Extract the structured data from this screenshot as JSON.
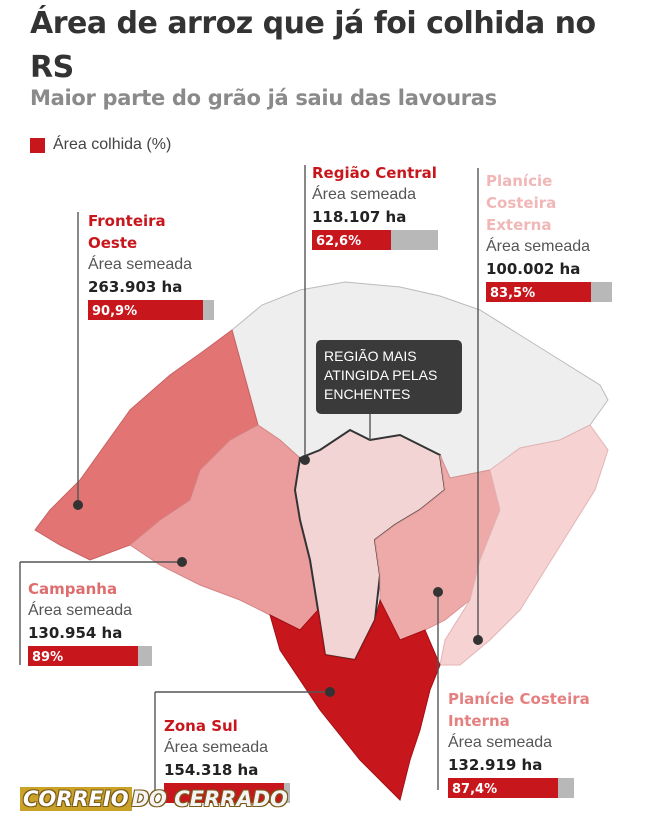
{
  "title": "Área de arroz que já foi colhida no RS",
  "subtitle": "Maior parte do grão já saiu das lavouras",
  "legend_label": "Área colhida (%)",
  "map_note": "REGIÃO MAIS ATINGIDA PELAS ENCHENTES",
  "regions": [
    {
      "name": "Fronteira Oeste",
      "label": "Área semeada",
      "area": "263.903 ha",
      "pct_text": "90,9%",
      "pct": 90.9,
      "color": "#c8161d"
    },
    {
      "name": "Região Central",
      "label": "Área semeada",
      "area": "118.107 ha",
      "pct_text": "62,6%",
      "pct": 62.6,
      "color": "#c8161d"
    },
    {
      "name": "Planície Costeira Externa",
      "label": "Área semeada",
      "area": "100.002 ha",
      "pct_text": "83,5%",
      "pct": 83.5,
      "color": "#f1b7b7"
    },
    {
      "name": "Campanha",
      "label": "Área semeada",
      "area": "130.954 ha",
      "pct_text": "89%",
      "pct": 89,
      "color": "#e06d6d"
    },
    {
      "name": "Zona Sul",
      "label": "Área semeada",
      "area": "154.318 ha",
      "pct_text": "",
      "pct": 95,
      "color": "#c8161d"
    },
    {
      "name": "Planície Costeira Interna",
      "label": "Área semeada",
      "area": "132.919 ha",
      "pct_text": "87,4%",
      "pct": 87.4,
      "color": "#e58080"
    }
  ],
  "brand": {
    "part1": "CORREIO",
    "part2": "DO CERRADO"
  }
}
